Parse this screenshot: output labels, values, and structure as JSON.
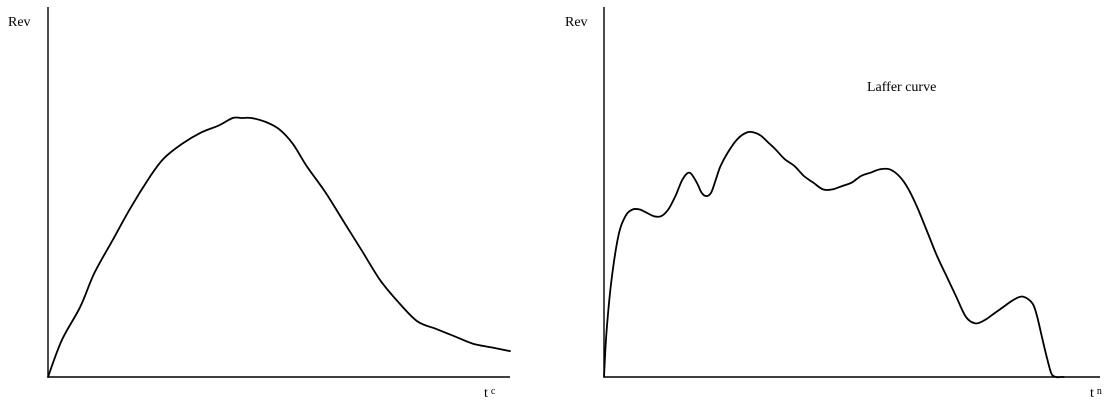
{
  "chart_data": [
    {
      "type": "line",
      "title": "",
      "ylabel": "Rev",
      "xlabel_main": "t",
      "xlabel_sub": "c",
      "xlim": [
        0,
        1
      ],
      "ylim": [
        0,
        1
      ],
      "grid": false,
      "series": [
        {
          "x": [
            0,
            0.03,
            0.07,
            0.1,
            0.14,
            0.18,
            0.22,
            0.25,
            0.29,
            0.33,
            0.37,
            0.4,
            0.42,
            0.44,
            0.47,
            0.5,
            0.53,
            0.56,
            0.6,
            0.64,
            0.68,
            0.72,
            0.76,
            0.8,
            0.84,
            0.88,
            0.92,
            0.96,
            1.0
          ],
          "y": [
            0,
            0.1,
            0.19,
            0.28,
            0.37,
            0.46,
            0.54,
            0.59,
            0.63,
            0.66,
            0.68,
            0.7,
            0.7,
            0.7,
            0.69,
            0.67,
            0.63,
            0.57,
            0.5,
            0.42,
            0.34,
            0.26,
            0.2,
            0.15,
            0.13,
            0.11,
            0.09,
            0.08,
            0.07
          ]
        }
      ]
    },
    {
      "type": "line",
      "title": "",
      "ylabel": "Rev",
      "xlabel_main": "t",
      "xlabel_sub": "n",
      "annotation": "Laffer curve",
      "xlim": [
        0,
        1
      ],
      "ylim": [
        0,
        1
      ],
      "grid": false,
      "series": [
        {
          "x": [
            0,
            0.005,
            0.015,
            0.03,
            0.045,
            0.06,
            0.075,
            0.09,
            0.105,
            0.12,
            0.135,
            0.15,
            0.165,
            0.18,
            0.195,
            0.205,
            0.215,
            0.225,
            0.235,
            0.245,
            0.26,
            0.28,
            0.3,
            0.315,
            0.33,
            0.345,
            0.36,
            0.38,
            0.4,
            0.42,
            0.44,
            0.46,
            0.48,
            0.5,
            0.52,
            0.54,
            0.56,
            0.58,
            0.6,
            0.62,
            0.64,
            0.66,
            0.68,
            0.7,
            0.72,
            0.74,
            0.76,
            0.78,
            0.8,
            0.82,
            0.84,
            0.86,
            0.88,
            0.9,
            0.91,
            0.92,
            0.93,
            0.94,
            0.95,
            0.96,
            0.966
          ],
          "y": [
            0,
            0.13,
            0.28,
            0.42,
            0.48,
            0.5,
            0.5,
            0.49,
            0.48,
            0.48,
            0.5,
            0.54,
            0.59,
            0.61,
            0.58,
            0.55,
            0.54,
            0.55,
            0.59,
            0.63,
            0.67,
            0.71,
            0.73,
            0.73,
            0.72,
            0.7,
            0.68,
            0.65,
            0.63,
            0.6,
            0.58,
            0.56,
            0.56,
            0.57,
            0.58,
            0.6,
            0.61,
            0.62,
            0.62,
            0.6,
            0.56,
            0.5,
            0.43,
            0.36,
            0.3,
            0.24,
            0.18,
            0.16,
            0.17,
            0.19,
            0.21,
            0.23,
            0.24,
            0.22,
            0.18,
            0.12,
            0.06,
            0.01,
            0,
            0,
            0
          ]
        }
      ]
    }
  ]
}
